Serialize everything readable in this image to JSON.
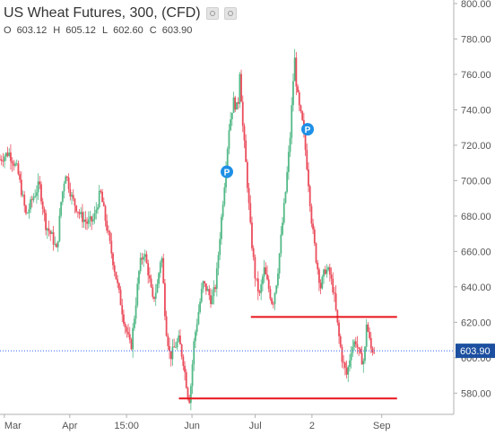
{
  "title": "US Wheat Futures, 300, (CFD)",
  "ohlc": [
    {
      "label": "O",
      "value": "603.12"
    },
    {
      "label": "H",
      "value": "605.12"
    },
    {
      "label": "L",
      "value": "602.60"
    },
    {
      "label": "C",
      "value": "603.90"
    }
  ],
  "colors": {
    "up": "#53b987",
    "down": "#eb4d5c",
    "support_line": "#e8141b",
    "price_line": "#2962ff",
    "price_tag_bg": "#1c4fa0",
    "marker": "#1e90e6",
    "axis_text": "#555555",
    "axis_line": "#b0b0b0"
  },
  "chart_data": {
    "type": "candlestick",
    "title": "US Wheat Futures, 300, (CFD)",
    "xlabel": "",
    "ylabel": "",
    "ylim": [
      568,
      802
    ],
    "grid": false,
    "y_ticks": [
      "800.00",
      "780.00",
      "760.00",
      "740.00",
      "720.00",
      "700.00",
      "680.00",
      "660.00",
      "640.00",
      "620.00",
      "600.00",
      "580.00"
    ],
    "y_tick_values": [
      800,
      780,
      760,
      740,
      720,
      700,
      680,
      660,
      640,
      620,
      600,
      580
    ],
    "x_ticks": [
      {
        "label": "Mar",
        "x": 2
      },
      {
        "label": "Apr",
        "x": 32
      },
      {
        "label": "15:00",
        "x": 58
      },
      {
        "label": "Jun",
        "x": 88
      },
      {
        "label": "Jul",
        "x": 117
      },
      {
        "label": "2",
        "x": 143
      },
      {
        "label": "Sep",
        "x": 175
      }
    ],
    "xlim": [
      0,
      208
    ],
    "current_price": 603.9,
    "current_price_label": "603.90",
    "price_path": [
      [
        0,
        712
      ],
      [
        4,
        716
      ],
      [
        8,
        706
      ],
      [
        12,
        680
      ],
      [
        15,
        690
      ],
      [
        18,
        698
      ],
      [
        21,
        675
      ],
      [
        24,
        668
      ],
      [
        26,
        660
      ],
      [
        28,
        688
      ],
      [
        30,
        705
      ],
      [
        33,
        690
      ],
      [
        37,
        680
      ],
      [
        40,
        676
      ],
      [
        43,
        678
      ],
      [
        46,
        694
      ],
      [
        48,
        680
      ],
      [
        51,
        660
      ],
      [
        54,
        640
      ],
      [
        57,
        620
      ],
      [
        60,
        605
      ],
      [
        62,
        628
      ],
      [
        64,
        652
      ],
      [
        66,
        660
      ],
      [
        68,
        648
      ],
      [
        70,
        632
      ],
      [
        72,
        640
      ],
      [
        74,
        660
      ],
      [
        76,
        618
      ],
      [
        78,
        600
      ],
      [
        80,
        606
      ],
      [
        82,
        610
      ],
      [
        84,
        598
      ],
      [
        86,
        580
      ],
      [
        87,
        576
      ],
      [
        89,
        610
      ],
      [
        91,
        626
      ],
      [
        93,
        642
      ],
      [
        95,
        638
      ],
      [
        97,
        632
      ],
      [
        99,
        642
      ],
      [
        101,
        672
      ],
      [
        103,
        700
      ],
      [
        105,
        730
      ],
      [
        107,
        745
      ],
      [
        109,
        740
      ],
      [
        110,
        765
      ],
      [
        111,
        735
      ],
      [
        113,
        705
      ],
      [
        115,
        670
      ],
      [
        117,
        645
      ],
      [
        119,
        635
      ],
      [
        121,
        650
      ],
      [
        123,
        640
      ],
      [
        125,
        630
      ],
      [
        127,
        645
      ],
      [
        129,
        670
      ],
      [
        131,
        695
      ],
      [
        133,
        725
      ],
      [
        134,
        748
      ],
      [
        135,
        770
      ],
      [
        136,
        752
      ],
      [
        137,
        742
      ],
      [
        139,
        730
      ],
      [
        141,
        705
      ],
      [
        143,
        675
      ],
      [
        145,
        655
      ],
      [
        147,
        640
      ],
      [
        149,
        650
      ],
      [
        151,
        648
      ],
      [
        153,
        637
      ],
      [
        155,
        615
      ],
      [
        157,
        598
      ],
      [
        159,
        590
      ],
      [
        161,
        605
      ],
      [
        163,
        610
      ],
      [
        165,
        600
      ],
      [
        167,
        598
      ],
      [
        168,
        620
      ],
      [
        170,
        605
      ],
      [
        172,
        603.9
      ]
    ],
    "support_lines": [
      {
        "value": 623,
        "x_start": 115,
        "x_end": 182
      },
      {
        "value": 577,
        "x_start": 82,
        "x_end": 182
      }
    ],
    "markers": [
      {
        "label": "P",
        "x": 104,
        "value": 705
      },
      {
        "label": "P",
        "x": 141,
        "value": 729
      }
    ]
  }
}
